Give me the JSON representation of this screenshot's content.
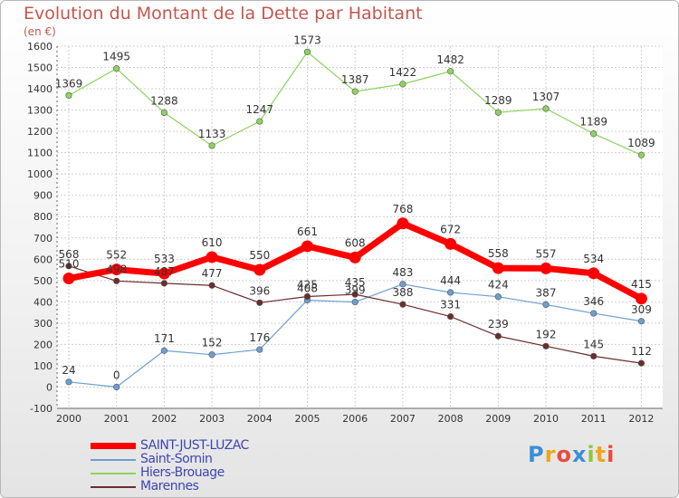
{
  "title": "Evolution du Montant de la Dette par Habitant",
  "unit": "(en €)",
  "logo": "Proxiti",
  "chart_data": {
    "type": "line",
    "categories": [
      "2000",
      "2001",
      "2002",
      "2003",
      "2004",
      "2005",
      "2006",
      "2007",
      "2008",
      "2009",
      "2010",
      "2011",
      "2012"
    ],
    "ylim": [
      -100,
      1600
    ],
    "yticks": [
      -100,
      0,
      100,
      200,
      300,
      400,
      500,
      600,
      700,
      800,
      900,
      1000,
      1100,
      1200,
      1300,
      1400,
      1500,
      1600
    ],
    "grid": true,
    "legend_position": "bottom-left",
    "series": [
      {
        "name": "SAINT-JUST-LUZAC",
        "color": "#ff0000",
        "values": [
          510,
          552,
          533,
          610,
          550,
          661,
          608,
          768,
          672,
          558,
          557,
          534,
          415
        ]
      },
      {
        "name": "Saint-Sornin",
        "color": "#6e9ed2",
        "values": [
          24,
          0,
          171,
          152,
          176,
          408,
          399,
          483,
          444,
          424,
          387,
          346,
          309
        ]
      },
      {
        "name": "Hiers-Brouage",
        "color": "#8dd35f",
        "values": [
          1369,
          1495,
          1288,
          1133,
          1247,
          1573,
          1387,
          1422,
          1482,
          1289,
          1307,
          1189,
          1089
        ]
      },
      {
        "name": "Marennes",
        "color": "#6b2d2d",
        "values": [
          568,
          498,
          487,
          477,
          396,
          425,
          435,
          388,
          331,
          239,
          192,
          145,
          112
        ]
      }
    ]
  }
}
